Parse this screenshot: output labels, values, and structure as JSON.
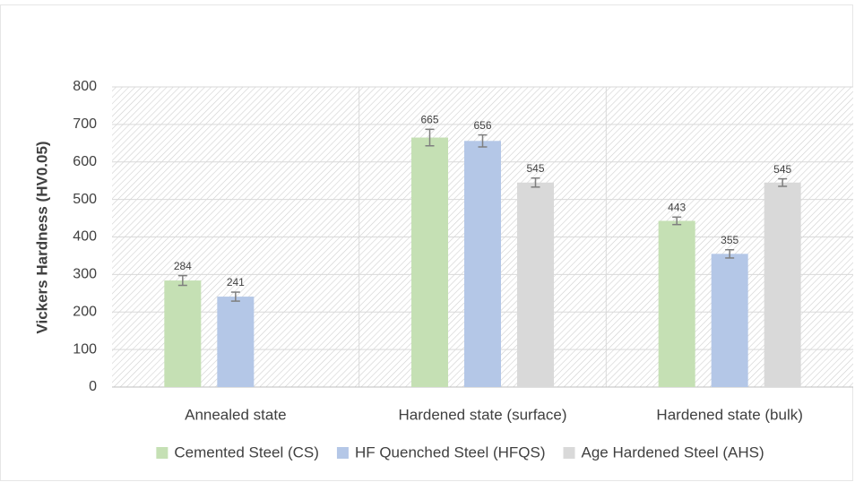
{
  "chart_data": {
    "type": "bar",
    "ylabel": "Vickers Hardness (HV0.05)",
    "categories": [
      "Annealed state",
      "Hardened state (surface)",
      "Hardened state (bulk)"
    ],
    "series": [
      {
        "name": "Cemented Steel (CS)",
        "color": "#c5e0b4",
        "values": [
          284,
          665,
          443
        ],
        "errors": [
          13,
          22,
          10
        ]
      },
      {
        "name": "HF Quenched Steel (HFQS)",
        "color": "#b4c7e7",
        "values": [
          241,
          656,
          355
        ],
        "errors": [
          12,
          16,
          11
        ]
      },
      {
        "name": "Age Hardened Steel (AHS)",
        "color": "#d9d9d9",
        "values": [
          null,
          545,
          545
        ],
        "errors": [
          null,
          12,
          10
        ]
      }
    ],
    "ylim": [
      0,
      800
    ],
    "yticks": [
      0,
      100,
      200,
      300,
      400,
      500,
      600,
      700,
      800
    ],
    "grid": true,
    "legend": "bottom"
  }
}
